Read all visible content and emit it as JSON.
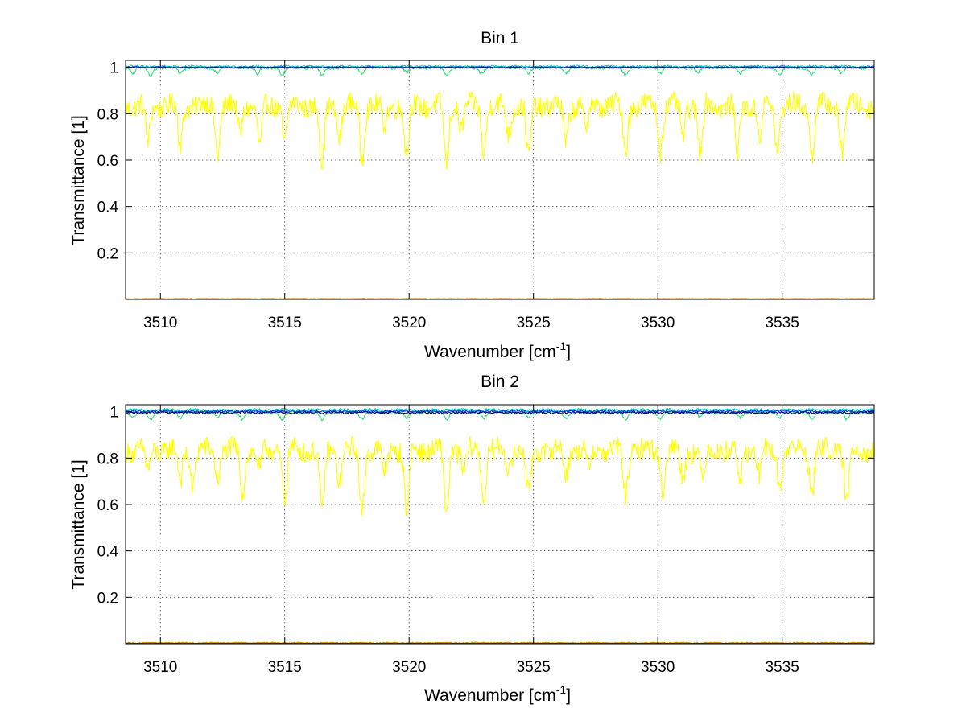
{
  "chart_data": [
    {
      "type": "line",
      "title": "Bin 1",
      "xlabel": "Wavenumber [cm",
      "xlabel_sup": "-1",
      "xlabel_end": "]",
      "ylabel": "Transmittance [1]",
      "xlim": [
        3508.6,
        3538.7
      ],
      "ylim": [
        0,
        1.03
      ],
      "xticks": [
        3510,
        3515,
        3520,
        3525,
        3530,
        3535
      ],
      "yticks": [
        0.2,
        0.4,
        0.6,
        0.8,
        1
      ],
      "ytick_labels": [
        "0.2",
        "0.4",
        "0.6",
        "0.8",
        "1"
      ],
      "grid": true,
      "series": [
        {
          "name": "yellow",
          "color": "#ffff00",
          "baseline": 0.835,
          "noise": 0.045,
          "mind": 0.56,
          "dips": [
            [
              3509.5,
              0.67
            ],
            [
              3510.8,
              0.66
            ],
            [
              3512.3,
              0.63
            ],
            [
              3513.2,
              0.71
            ],
            [
              3514.0,
              0.65
            ],
            [
              3515.0,
              0.68
            ],
            [
              3516.5,
              0.56
            ],
            [
              3517.2,
              0.7
            ],
            [
              3518.1,
              0.61
            ],
            [
              3519.0,
              0.74
            ],
            [
              3519.9,
              0.61
            ],
            [
              3521.5,
              0.57
            ],
            [
              3522.1,
              0.73
            ],
            [
              3523.0,
              0.64
            ],
            [
              3524.0,
              0.71
            ],
            [
              3524.8,
              0.6
            ],
            [
              3526.3,
              0.67
            ],
            [
              3527.1,
              0.73
            ],
            [
              3528.7,
              0.64
            ],
            [
              3530.1,
              0.65
            ],
            [
              3531.0,
              0.7
            ],
            [
              3531.7,
              0.63
            ],
            [
              3533.2,
              0.63
            ],
            [
              3534.1,
              0.7
            ],
            [
              3534.8,
              0.64
            ],
            [
              3536.2,
              0.63
            ],
            [
              3537.4,
              0.64
            ]
          ]
        },
        {
          "name": "green",
          "color": "#33dd77",
          "baseline": 0.998,
          "noise": 0.006,
          "mind": 0.96,
          "dips": [
            [
              3508.9,
              0.975
            ],
            [
              3509.6,
              0.96
            ],
            [
              3510.8,
              0.975
            ],
            [
              3512.3,
              0.98
            ],
            [
              3513.9,
              0.97
            ],
            [
              3514.9,
              0.965
            ],
            [
              3516.5,
              0.965
            ],
            [
              3518.1,
              0.975
            ],
            [
              3519.9,
              0.975
            ],
            [
              3521.5,
              0.965
            ],
            [
              3522.9,
              0.975
            ],
            [
              3524.8,
              0.975
            ],
            [
              3526.3,
              0.975
            ],
            [
              3528.7,
              0.97
            ],
            [
              3530.1,
              0.975
            ],
            [
              3531.6,
              0.975
            ],
            [
              3533.3,
              0.975
            ],
            [
              3534.9,
              0.97
            ],
            [
              3536.2,
              0.97
            ],
            [
              3537.4,
              0.975
            ]
          ]
        },
        {
          "name": "cyan",
          "color": "#00cccc",
          "baseline": 1.004,
          "noise": 0.004,
          "mind": 0.99,
          "dips": []
        },
        {
          "name": "blue",
          "color": "#0044dd",
          "baseline": 1.0,
          "noise": 0.003,
          "mind": 0.99,
          "dips": []
        },
        {
          "name": "navy",
          "color": "#000088",
          "baseline": 0.999,
          "noise": 0.002,
          "mind": 0.99,
          "dips": []
        },
        {
          "name": "orange",
          "color": "#cc8800",
          "baseline": 0.003,
          "noise": 0.001,
          "mind": 0.0,
          "dips": []
        },
        {
          "name": "red",
          "color": "#880000",
          "baseline": 0.001,
          "noise": 0.0,
          "mind": 0.0,
          "dips": []
        }
      ]
    },
    {
      "type": "line",
      "title": "Bin 2",
      "xlabel": "Wavenumber [cm",
      "xlabel_sup": "-1",
      "xlabel_end": "]",
      "ylabel": "Transmittance [1]",
      "xlim": [
        3508.6,
        3538.7
      ],
      "ylim": [
        0,
        1.03
      ],
      "xticks": [
        3510,
        3515,
        3520,
        3525,
        3530,
        3535
      ],
      "yticks": [
        0.2,
        0.4,
        0.6,
        0.8,
        1
      ],
      "ytick_labels": [
        "0.2",
        "0.4",
        "0.6",
        "0.8",
        "1"
      ],
      "grid": true,
      "series": [
        {
          "name": "yellow",
          "color": "#ffff00",
          "baseline": 0.835,
          "noise": 0.045,
          "mind": 0.55,
          "dips": [
            [
              3509.5,
              0.74
            ],
            [
              3510.8,
              0.7
            ],
            [
              3511.3,
              0.68
            ],
            [
              3512.3,
              0.72
            ],
            [
              3513.3,
              0.65
            ],
            [
              3514.0,
              0.74
            ],
            [
              3515.0,
              0.62
            ],
            [
              3516.5,
              0.55
            ],
            [
              3517.2,
              0.7
            ],
            [
              3518.1,
              0.56
            ],
            [
              3519.0,
              0.73
            ],
            [
              3519.9,
              0.56
            ],
            [
              3521.5,
              0.56
            ],
            [
              3522.2,
              0.74
            ],
            [
              3523.0,
              0.63
            ],
            [
              3524.0,
              0.74
            ],
            [
              3524.8,
              0.63
            ],
            [
              3526.3,
              0.73
            ],
            [
              3527.2,
              0.75
            ],
            [
              3528.7,
              0.64
            ],
            [
              3530.2,
              0.67
            ],
            [
              3531.0,
              0.71
            ],
            [
              3531.8,
              0.7
            ],
            [
              3533.3,
              0.7
            ],
            [
              3534.1,
              0.72
            ],
            [
              3534.9,
              0.68
            ],
            [
              3536.2,
              0.65
            ],
            [
              3537.6,
              0.6
            ]
          ]
        },
        {
          "name": "green",
          "color": "#33dd77",
          "baseline": 0.997,
          "noise": 0.006,
          "mind": 0.96,
          "dips": [
            [
              3508.9,
              0.975
            ],
            [
              3509.6,
              0.965
            ],
            [
              3510.8,
              0.975
            ],
            [
              3512.3,
              0.98
            ],
            [
              3513.3,
              0.97
            ],
            [
              3514.9,
              0.965
            ],
            [
              3516.5,
              0.965
            ],
            [
              3518.1,
              0.97
            ],
            [
              3519.9,
              0.97
            ],
            [
              3521.5,
              0.965
            ],
            [
              3523.0,
              0.975
            ],
            [
              3524.8,
              0.975
            ],
            [
              3526.3,
              0.975
            ],
            [
              3528.7,
              0.97
            ],
            [
              3530.1,
              0.97
            ],
            [
              3531.7,
              0.975
            ],
            [
              3533.3,
              0.975
            ],
            [
              3534.9,
              0.975
            ],
            [
              3536.2,
              0.97
            ],
            [
              3537.6,
              0.965
            ]
          ]
        },
        {
          "name": "cyan",
          "color": "#00cccc",
          "baseline": 1.008,
          "noise": 0.005,
          "mind": 0.99,
          "dips": []
        },
        {
          "name": "blue",
          "color": "#0044dd",
          "baseline": 1.002,
          "noise": 0.004,
          "mind": 0.985,
          "dips": []
        },
        {
          "name": "navy",
          "color": "#000088",
          "baseline": 0.996,
          "noise": 0.004,
          "mind": 0.98,
          "dips": []
        },
        {
          "name": "orange",
          "color": "#cc8800",
          "baseline": 0.004,
          "noise": 0.002,
          "mind": 0.0,
          "dips": []
        },
        {
          "name": "red",
          "color": "#880000",
          "baseline": 0.001,
          "noise": 0.0,
          "mind": 0.0,
          "dips": []
        }
      ]
    }
  ]
}
